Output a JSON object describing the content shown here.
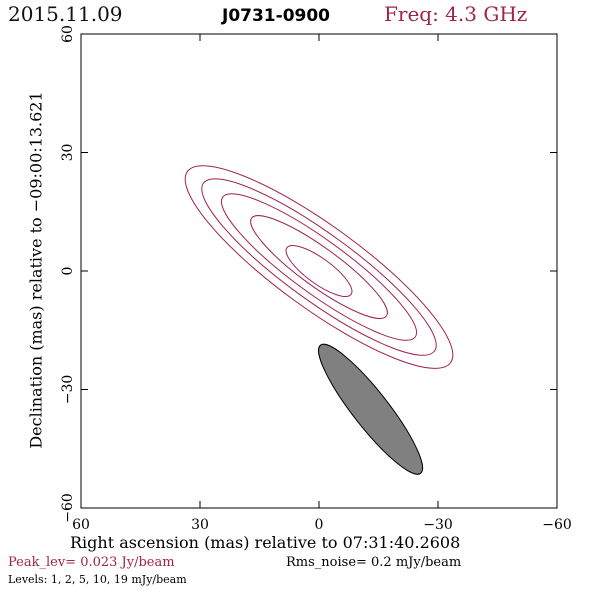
{
  "header": {
    "date": "2015.11.09",
    "source": "J0731-0900",
    "freq": "Freq: 4.3 GHz"
  },
  "chart_data": {
    "type": "contour",
    "xlabel": "Right ascension (mas) relative to 07:31:40.2608",
    "ylabel": "Declination (mas) relative to −09:00:13.621",
    "xlim": [
      60,
      -60
    ],
    "ylim": [
      -60,
      60
    ],
    "xticks": [
      60,
      30,
      0,
      -30,
      -60
    ],
    "yticks": [
      60,
      30,
      0,
      -30,
      -60
    ],
    "xtick_labels": [
      "60",
      "30",
      "0",
      "−30",
      "−60"
    ],
    "ytick_labels": [
      "60",
      "30",
      "0",
      "−30",
      "−60"
    ],
    "contours": [
      {
        "level": "1",
        "center": [
          0,
          1
        ],
        "semi_major": 41,
        "semi_minor": 10.5,
        "pa_deg": 126
      },
      {
        "level": "2",
        "center": [
          0,
          1
        ],
        "semi_major": 36,
        "semi_minor": 8.5,
        "pa_deg": 126
      },
      {
        "level": "5",
        "center": [
          0,
          1
        ],
        "semi_major": 30,
        "semi_minor": 6.8,
        "pa_deg": 126
      },
      {
        "level": "10",
        "center": [
          0,
          1
        ],
        "semi_major": 21,
        "semi_minor": 4.9,
        "pa_deg": 126
      },
      {
        "level": "19",
        "center": [
          0,
          0
        ],
        "semi_major": 10,
        "semi_minor": 3.2,
        "pa_deg": 126
      }
    ],
    "beam": {
      "center": [
        -13,
        -35
      ],
      "semi_major": 20.5,
      "semi_minor": 4.5,
      "pa_deg": 142
    },
    "contour_color": "#a0244a",
    "beam_color": "#808080"
  },
  "footer": {
    "peak": "Peak_lev=  0.023 Jy/beam",
    "rms": "Rms_noise=  0.2 mJy/beam",
    "levels": "Levels:  1,   2,   5,  10,  19 mJy/beam"
  }
}
